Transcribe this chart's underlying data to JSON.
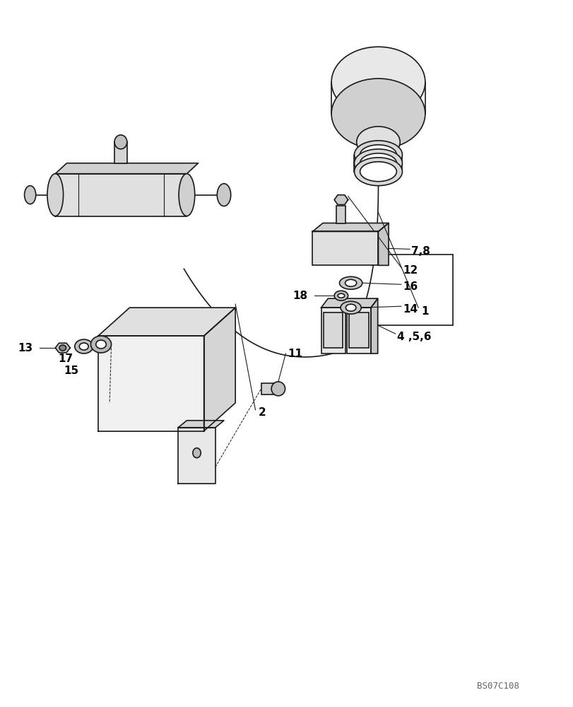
{
  "background_color": "#ffffff",
  "line_color": "#1a1a1a",
  "label_color": "#000000",
  "watermark": "BS07C108"
}
